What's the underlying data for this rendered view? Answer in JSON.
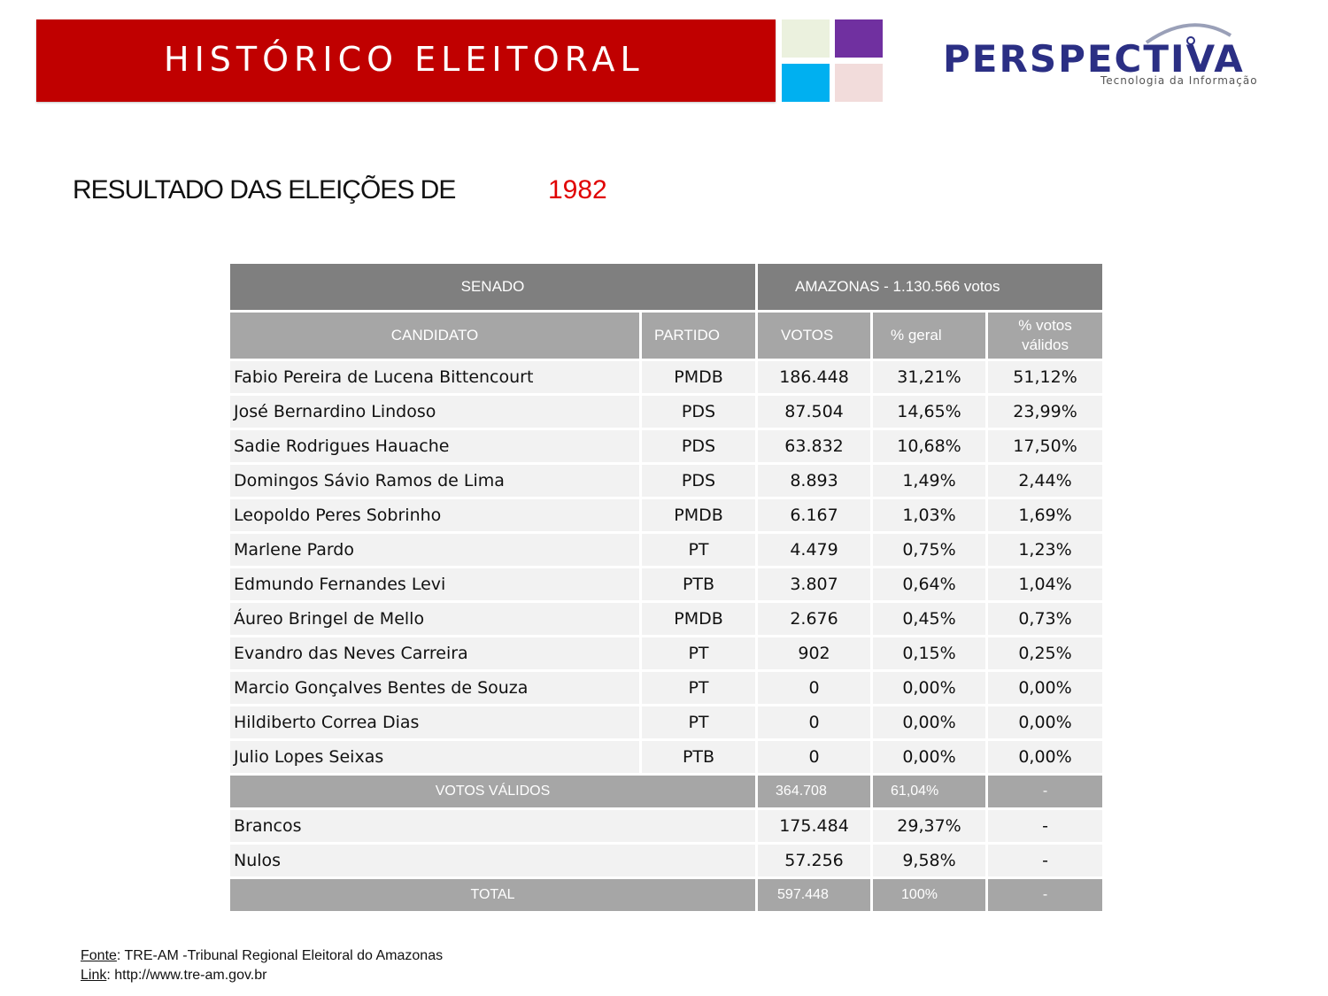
{
  "header": {
    "title": "HISTÓRICO ELEITORAL",
    "logo_name": "PERSPECTIVA",
    "logo_tagline": "Tecnologia da Informação",
    "colors": {
      "banner": "#c00000",
      "sq1": "#ebf1de",
      "sq2": "#7030a0",
      "sq3": "#00b0f0",
      "sq4": "#f2dcdb"
    }
  },
  "heading": {
    "text": "RESULTADO DAS ELEIÇÕES DE",
    "year": "1982"
  },
  "table": {
    "office": "SENADO",
    "region": "AMAZONAS - 1.130.566 votos",
    "columns": [
      "CANDIDATO",
      "PARTIDO",
      "VOTOS",
      "% geral",
      "% votos válidos"
    ],
    "rows": [
      {
        "name": "Fabio Pereira de Lucena Bittencourt",
        "party": "PMDB",
        "votes": "186.448",
        "pct": "31,21%",
        "valid": "51,12%"
      },
      {
        "name": "José Bernardino Lindoso",
        "party": "PDS",
        "votes": "87.504",
        "pct": "14,65%",
        "valid": "23,99%"
      },
      {
        "name": "Sadie Rodrigues Hauache",
        "party": "PDS",
        "votes": "63.832",
        "pct": "10,68%",
        "valid": "17,50%"
      },
      {
        "name": "Domingos Sávio Ramos de Lima",
        "party": "PDS",
        "votes": "8.893",
        "pct": "1,49%",
        "valid": "2,44%"
      },
      {
        "name": "Leopoldo Peres Sobrinho",
        "party": "PMDB",
        "votes": "6.167",
        "pct": "1,03%",
        "valid": "1,69%"
      },
      {
        "name": "Marlene Pardo",
        "party": "PT",
        "votes": "4.479",
        "pct": "0,75%",
        "valid": "1,23%"
      },
      {
        "name": "Edmundo Fernandes Levi",
        "party": "PTB",
        "votes": "3.807",
        "pct": "0,64%",
        "valid": "1,04%"
      },
      {
        "name": "Áureo Bringel de Mello",
        "party": "PMDB",
        "votes": "2.676",
        "pct": "0,45%",
        "valid": "0,73%"
      },
      {
        "name": "Evandro das Neves Carreira",
        "party": "PT",
        "votes": "902",
        "pct": "0,15%",
        "valid": "0,25%"
      },
      {
        "name": "Marcio Gonçalves Bentes de Souza",
        "party": "PT",
        "votes": "0",
        "pct": "0,00%",
        "valid": "0,00%"
      },
      {
        "name": "Hildiberto Correa Dias",
        "party": "PT",
        "votes": "0",
        "pct": "0,00%",
        "valid": "0,00%"
      },
      {
        "name": "Julio Lopes Seixas",
        "party": "PTB",
        "votes": "0",
        "pct": "0,00%",
        "valid": "0,00%"
      }
    ],
    "valid_votes": {
      "label": "VOTOS VÁLIDOS",
      "votes": "364.708",
      "pct": "61,04%",
      "valid": "-"
    },
    "blank": {
      "label": "Brancos",
      "votes": "175.484",
      "pct": "29,37%",
      "valid": "-"
    },
    "null": {
      "label": "Nulos",
      "votes": "57.256",
      "pct": "9,58%",
      "valid": "-"
    },
    "total": {
      "label": "TOTAL",
      "votes": "597.448",
      "pct": "100%",
      "valid": "-"
    }
  },
  "footer": {
    "source_label": "Fonte",
    "source_text": ":  TRE-AM -Tribunal Regional Eleitoral do Amazonas",
    "link_label": "Link",
    "link_text": ":  http://www.tre-am.gov.br"
  }
}
